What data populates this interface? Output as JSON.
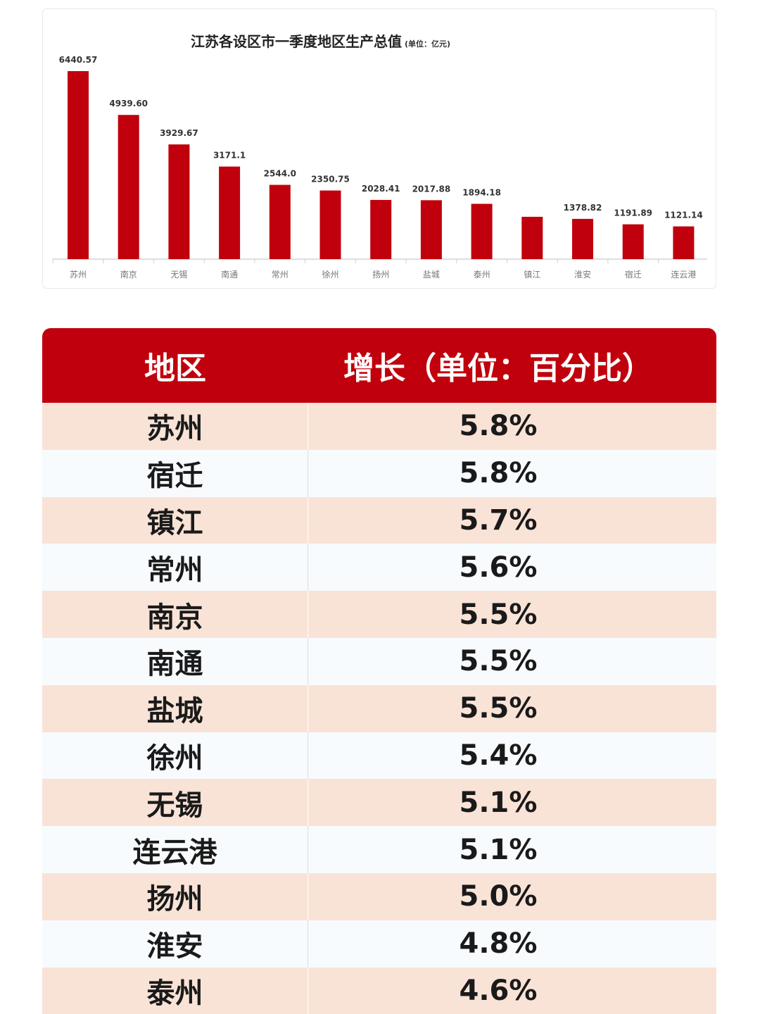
{
  "chart_data": {
    "type": "bar",
    "title": "江苏各设区市一季度地区生产总值",
    "unit": "(单位：亿元)",
    "categories": [
      "苏州",
      "南京",
      "无锡",
      "南通",
      "常州",
      "徐州",
      "扬州",
      "盐城",
      "泰州",
      "镇江",
      "淮安",
      "宿迁",
      "连云港"
    ],
    "values": [
      6440.57,
      4939.6,
      3929.67,
      3171.1,
      2544.0,
      2350.75,
      2028.41,
      2017.88,
      1894.18,
      1450,
      1378.82,
      1191.89,
      1121.14
    ],
    "data_labels": [
      "6440.57",
      "4939.60",
      "3929.67",
      "3171.1",
      "2544.0",
      "2350.75",
      "2028.41",
      "2017.88",
      "1894.18",
      "",
      "1378.82",
      "1191.89",
      "1121.14"
    ],
    "ylim": [
      0,
      6440.57
    ],
    "bar_color": "#c0000c",
    "grid": false
  },
  "table": {
    "headers": {
      "region": "地区",
      "growth": "增长（单位：百分比）"
    },
    "header_color": "#c0000c",
    "rows": [
      {
        "region": "苏州",
        "growth": "5.8%"
      },
      {
        "region": "宿迁",
        "growth": "5.8%"
      },
      {
        "region": "镇江",
        "growth": "5.7%"
      },
      {
        "region": "常州",
        "growth": "5.6%"
      },
      {
        "region": "南京",
        "growth": "5.5%"
      },
      {
        "region": "南通",
        "growth": "5.5%"
      },
      {
        "region": "盐城",
        "growth": "5.5%"
      },
      {
        "region": "徐州",
        "growth": "5.4%"
      },
      {
        "region": "无锡",
        "growth": "5.1%"
      },
      {
        "region": "连云港",
        "growth": "5.1%"
      },
      {
        "region": "扬州",
        "growth": "5.0%"
      },
      {
        "region": "淮安",
        "growth": "4.8%"
      },
      {
        "region": "泰州",
        "growth": "4.6%"
      }
    ]
  }
}
